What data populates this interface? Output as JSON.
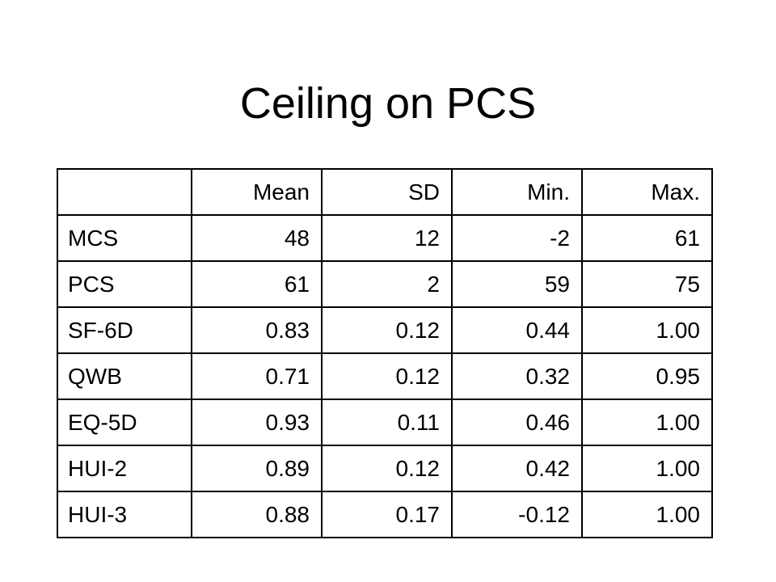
{
  "title": "Ceiling on PCS",
  "table": {
    "corner": "",
    "columns": [
      "Mean",
      "SD",
      "Min.",
      "Max."
    ],
    "rows": [
      {
        "label": "MCS",
        "cells": [
          "48",
          "12",
          "-2",
          "61"
        ]
      },
      {
        "label": "PCS",
        "cells": [
          "61",
          "2",
          "59",
          "75"
        ]
      },
      {
        "label": "SF-6D",
        "cells": [
          "0.83",
          "0.12",
          "0.44",
          "1.00"
        ]
      },
      {
        "label": "QWB",
        "cells": [
          "0.71",
          "0.12",
          "0.32",
          "0.95"
        ]
      },
      {
        "label": "EQ-5D",
        "cells": [
          "0.93",
          "0.11",
          "0.46",
          "1.00"
        ]
      },
      {
        "label": "HUI-2",
        "cells": [
          "0.89",
          "0.12",
          "0.42",
          "1.00"
        ]
      },
      {
        "label": "HUI-3",
        "cells": [
          "0.88",
          "0.17",
          "-0.12",
          "1.00"
        ]
      }
    ]
  }
}
